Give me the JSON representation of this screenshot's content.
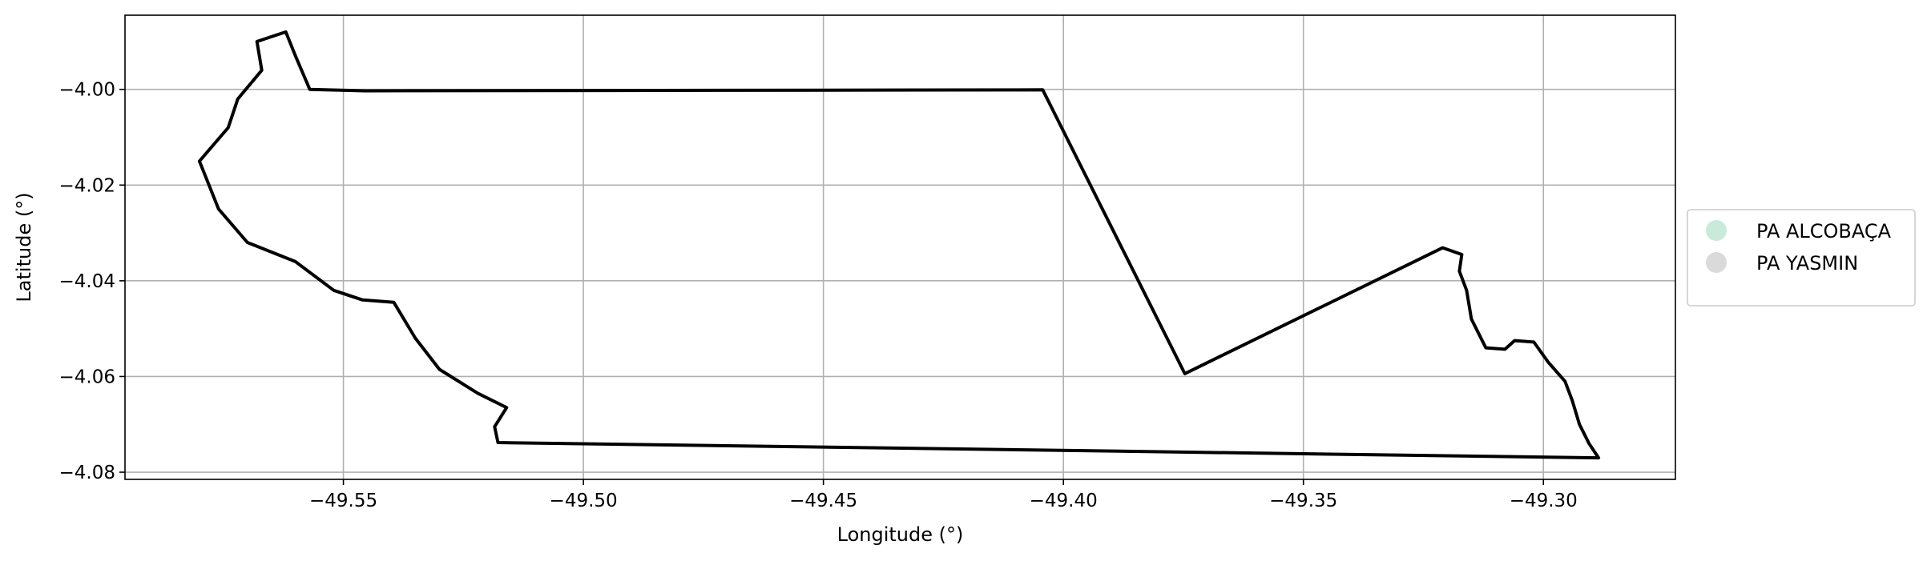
{
  "chart_data": {
    "type": "map",
    "title": "",
    "xlabel": "Longitude (°)",
    "ylabel": "Latitude (°)",
    "xlim": [
      -49.5955,
      -49.2725
    ],
    "ylim": [
      -4.0815,
      -3.9845
    ],
    "x_ticks": [
      -49.55,
      -49.5,
      -49.45,
      -49.4,
      -49.35,
      -49.3
    ],
    "x_tick_labels": [
      "−49.55",
      "−49.50",
      "−49.45",
      "−49.40",
      "−49.35",
      "−49.30"
    ],
    "y_ticks": [
      -4.0,
      -4.02,
      -4.04,
      -4.06,
      -4.08
    ],
    "y_tick_labels": [
      "−4.00",
      "−4.02",
      "−4.04",
      "−4.06",
      "−4.08"
    ],
    "grid": true,
    "legend_position": "right",
    "series": [
      {
        "name": "PA ALCOBAÇA",
        "color": "#c7eadb",
        "outline_color": "#000000",
        "polygon": [
          [
            -49.5455,
            -4.0003
          ],
          [
            -49.4043,
            -4.0001
          ],
          [
            -49.3747,
            -4.0594
          ],
          [
            -49.321,
            -4.0331
          ],
          [
            -49.317,
            -4.0345
          ],
          [
            -49.3175,
            -4.038
          ],
          [
            -49.316,
            -4.042
          ],
          [
            -49.315,
            -4.048
          ],
          [
            -49.312,
            -4.054
          ],
          [
            -49.308,
            -4.0543
          ],
          [
            -49.306,
            -4.0525
          ],
          [
            -49.302,
            -4.0528
          ],
          [
            -49.299,
            -4.057
          ],
          [
            -49.2955,
            -4.061
          ],
          [
            -49.294,
            -4.065
          ],
          [
            -49.2925,
            -4.07
          ],
          [
            -49.2905,
            -4.074
          ],
          [
            -49.2885,
            -4.077
          ],
          [
            -49.5178,
            -4.0738
          ],
          [
            -49.5185,
            -4.0705
          ],
          [
            -49.516,
            -4.0665
          ],
          [
            -49.522,
            -4.0635
          ],
          [
            -49.53,
            -4.0585
          ],
          [
            -49.535,
            -4.052
          ],
          [
            -49.5395,
            -4.0445
          ],
          [
            -49.546,
            -4.044
          ],
          [
            -49.552,
            -4.042
          ],
          [
            -49.56,
            -4.036
          ],
          [
            -49.57,
            -4.032
          ],
          [
            -49.576,
            -4.025
          ],
          [
            -49.58,
            -4.015
          ],
          [
            -49.574,
            -4.008
          ],
          [
            -49.572,
            -4.002
          ],
          [
            -49.567,
            -3.996
          ],
          [
            -49.568,
            -3.99
          ],
          [
            -49.562,
            -3.988
          ],
          [
            -49.56,
            -3.993
          ],
          [
            -49.557,
            -4.0
          ],
          [
            -49.5455,
            -4.0003
          ]
        ]
      },
      {
        "name": "PA YASMIN",
        "color": "#dadada"
      }
    ]
  }
}
